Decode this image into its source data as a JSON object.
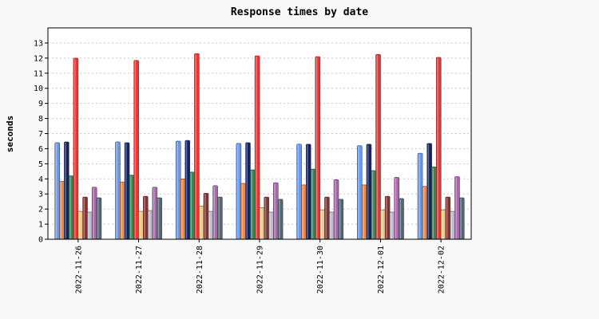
{
  "chart_data": {
    "type": "bar",
    "title": "Response times by date",
    "xlabel": "",
    "ylabel": "seconds",
    "ylim": [
      0,
      14
    ],
    "yticks": [
      0,
      1,
      2,
      3,
      4,
      5,
      6,
      7,
      8,
      9,
      10,
      11,
      12,
      13
    ],
    "grid": "horizontal dashed",
    "legend": "none",
    "categories": [
      "2022-11-26",
      "2022-11-27",
      "2022-11-28",
      "2022-11-29",
      "2022-11-30",
      "2022-12-01",
      "2022-12-02"
    ],
    "series": [
      {
        "color": "#6699ee",
        "values": [
          6.4,
          6.45,
          6.5,
          6.35,
          6.3,
          6.2,
          5.7
        ]
      },
      {
        "color": "#ee8844",
        "values": [
          3.85,
          3.8,
          4.0,
          3.7,
          3.6,
          3.6,
          3.5
        ]
      },
      {
        "color": "#112266",
        "values": [
          6.45,
          6.4,
          6.55,
          6.4,
          6.3,
          6.3,
          6.35
        ]
      },
      {
        "color": "#338855",
        "values": [
          4.2,
          4.25,
          4.45,
          4.6,
          4.65,
          4.55,
          4.8
        ]
      },
      {
        "color": "#ee3333",
        "values": [
          12.0,
          11.85,
          12.3,
          12.15,
          12.1,
          12.25,
          12.05
        ]
      },
      {
        "color": "#eecc88",
        "values": [
          1.85,
          1.85,
          2.2,
          2.1,
          1.95,
          1.95,
          1.95
        ]
      },
      {
        "color": "#883333",
        "values": [
          2.8,
          2.85,
          3.05,
          2.8,
          2.8,
          2.85,
          2.8
        ]
      },
      {
        "color": "#bbbbcc",
        "values": [
          1.8,
          1.9,
          1.85,
          1.8,
          1.8,
          1.8,
          1.85
        ]
      },
      {
        "color": "#aa66aa",
        "values": [
          3.45,
          3.45,
          3.55,
          3.75,
          3.95,
          4.1,
          4.15
        ]
      },
      {
        "color": "#556677",
        "values": [
          2.75,
          2.75,
          2.8,
          2.65,
          2.65,
          2.7,
          2.75
        ]
      }
    ]
  }
}
